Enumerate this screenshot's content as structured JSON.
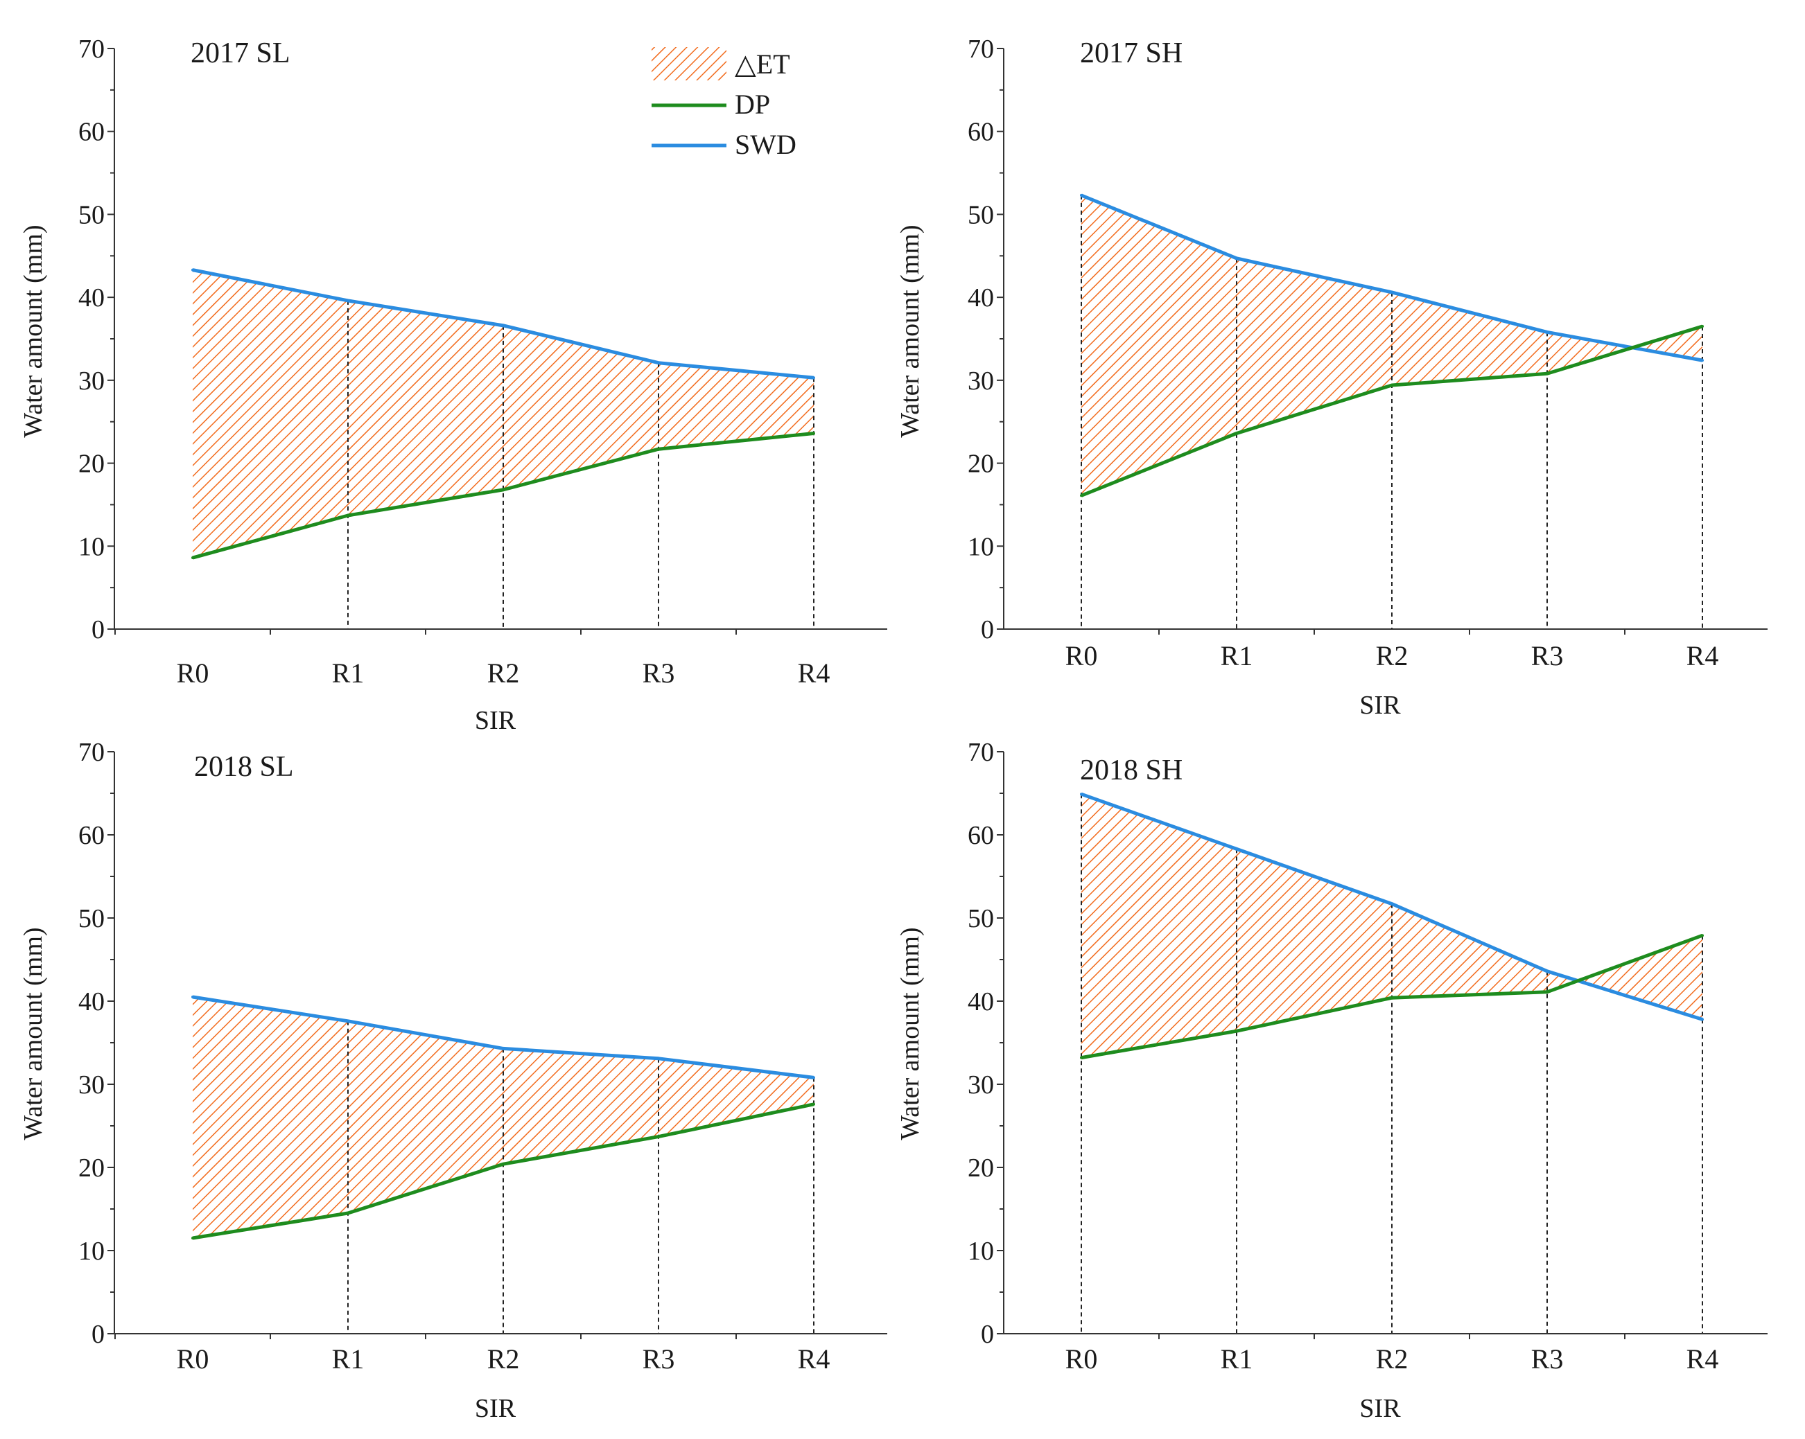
{
  "legend": {
    "items": [
      {
        "key": "delta_et",
        "label": "△ET",
        "swatch": "hatch"
      },
      {
        "key": "dp",
        "label": "DP",
        "swatch": "line",
        "color": "#1e8c1e"
      },
      {
        "key": "swd",
        "label": "SWD",
        "swatch": "line",
        "color": "#2b8ce0"
      }
    ]
  },
  "colors": {
    "dp": "#1e8c1e",
    "swd": "#2b8ce0",
    "hatch": "#f26b1d",
    "axis": "#333333",
    "dashed": "#222222"
  },
  "chart_data": [
    {
      "type": "line",
      "title": "2017 SL",
      "xlabel": "SIR",
      "ylabel": "Water amount (mm)",
      "categories": [
        "R0",
        "R1",
        "R2",
        "R3",
        "R4"
      ],
      "ylim": [
        0,
        70
      ],
      "yticks": [
        0,
        10,
        20,
        30,
        40,
        50,
        60,
        70
      ],
      "series": [
        {
          "name": "SWD",
          "values": [
            43.3,
            39.6,
            36.6,
            32.1,
            30.3
          ]
        },
        {
          "name": "DP",
          "values": [
            8.6,
            13.7,
            16.8,
            21.7,
            23.6
          ]
        }
      ],
      "shaded": "△ET"
    },
    {
      "type": "line",
      "title": "2017 SH",
      "xlabel": "SIR",
      "ylabel": "Water amount (mm)",
      "categories": [
        "R0",
        "R1",
        "R2",
        "R3",
        "R4"
      ],
      "ylim": [
        0,
        70
      ],
      "yticks": [
        0,
        10,
        20,
        30,
        40,
        50,
        60,
        70
      ],
      "series": [
        {
          "name": "SWD",
          "values": [
            52.3,
            44.7,
            40.6,
            35.8,
            32.4
          ]
        },
        {
          "name": "DP",
          "values": [
            16.1,
            23.6,
            29.4,
            30.8,
            36.5
          ]
        }
      ],
      "shaded": "△ET"
    },
    {
      "type": "line",
      "title": "2018 SL",
      "xlabel": "SIR",
      "ylabel": "Water amount (mm)",
      "categories": [
        "R0",
        "R1",
        "R2",
        "R3",
        "R4"
      ],
      "ylim": [
        0,
        70
      ],
      "yticks": [
        0,
        10,
        20,
        30,
        40,
        50,
        60,
        70
      ],
      "series": [
        {
          "name": "SWD",
          "values": [
            40.5,
            37.6,
            34.3,
            33.1,
            30.8
          ]
        },
        {
          "name": "DP",
          "values": [
            11.5,
            14.5,
            20.4,
            23.7,
            27.6
          ]
        }
      ],
      "shaded": "△ET"
    },
    {
      "type": "line",
      "title": "2018 SH",
      "xlabel": "SIR",
      "ylabel": "Water amount (mm)",
      "categories": [
        "R0",
        "R1",
        "R2",
        "R3",
        "R4"
      ],
      "ylim": [
        0,
        70
      ],
      "yticks": [
        0,
        10,
        20,
        30,
        40,
        50,
        60,
        70
      ],
      "series": [
        {
          "name": "SWD",
          "values": [
            64.9,
            58.3,
            51.7,
            43.6,
            37.8
          ]
        },
        {
          "name": "DP",
          "values": [
            33.2,
            36.4,
            40.4,
            41.1,
            47.9
          ]
        }
      ],
      "shaded": "△ET"
    }
  ]
}
